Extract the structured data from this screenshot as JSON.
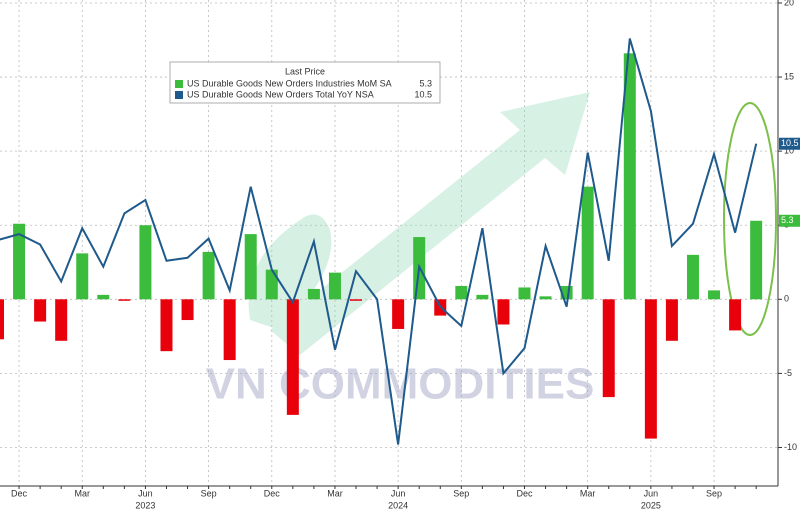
{
  "chart_data": {
    "type": "bar-line",
    "legend_title": "Last Price",
    "watermark": "VN COMMODITIES",
    "categories": [
      null,
      "Dec",
      null,
      null,
      "Mar",
      null,
      null,
      "Jun",
      null,
      null,
      "Sep",
      null,
      null,
      "Dec",
      null,
      null,
      "Mar",
      null,
      null,
      "Jun",
      null,
      null,
      "Sep",
      null,
      null,
      "Dec",
      null,
      null,
      "Mar",
      null,
      null,
      "Jun",
      null,
      null,
      "Sep",
      null,
      null
    ],
    "year_labels": [
      {
        "label": "2023",
        "at": 7
      },
      {
        "label": "2024",
        "at": 19
      },
      {
        "label": "2025",
        "at": 31
      }
    ],
    "series": [
      {
        "name": "US Durable Goods New Orders Industries MoM SA",
        "type": "bar",
        "color": "#3cbc3c",
        "negative_color": "#e8000b",
        "last_label": "5.3",
        "values": [
          -2.7,
          5.1,
          -1.5,
          -2.8,
          3.1,
          0.3,
          -0.1,
          5.0,
          -3.5,
          -1.4,
          3.2,
          -4.1,
          4.4,
          2.0,
          -7.8,
          0.7,
          1.8,
          -0.1,
          0.0,
          -2.0,
          4.2,
          -1.1,
          0.9,
          0.3,
          -1.7,
          0.8,
          0.2,
          0.9,
          7.6,
          -6.6,
          16.6,
          -9.4,
          -2.8,
          3.0,
          0.6,
          -2.1,
          5.3
        ]
      },
      {
        "name": "US Durable Goods New Orders Total YoY NSA",
        "type": "line",
        "color": "#1f5a8c",
        "last_label": "10.5",
        "values": [
          4.0,
          4.4,
          3.7,
          1.2,
          4.8,
          2.2,
          5.8,
          6.7,
          2.6,
          2.8,
          4.1,
          0.6,
          7.6,
          2.0,
          -0.2,
          3.9,
          -3.4,
          1.9,
          0.0,
          -9.8,
          2.2,
          -0.5,
          -1.8,
          4.8,
          -5.0,
          -3.3,
          3.6,
          -0.5,
          9.9,
          2.6,
          17.6,
          12.7,
          3.6,
          5.1,
          9.8,
          4.5,
          10.5
        ]
      }
    ],
    "ylim": [
      -12.6,
      20.2
    ],
    "yticks": [
      -10,
      -5,
      0,
      5,
      10,
      15,
      20
    ],
    "grid": true
  }
}
